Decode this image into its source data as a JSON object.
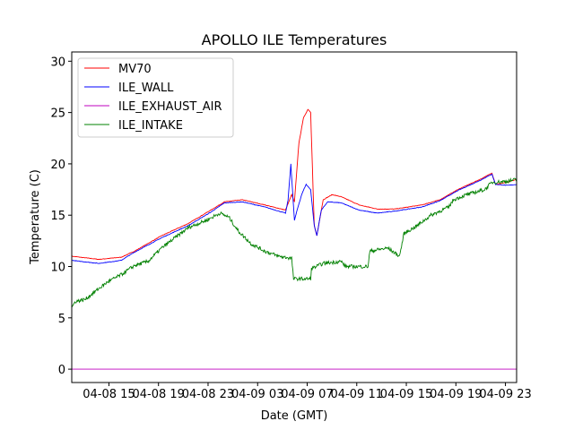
{
  "chart_data": {
    "type": "line",
    "title": "APOLLO ILE Temperatures",
    "xlabel": "Date (GMT)",
    "ylabel": "Temperature (C)",
    "x_units": "hours since 04-08 00:00 GMT",
    "xlim": [
      12.0,
      47.9
    ],
    "ylim": [
      -1.3,
      30.9
    ],
    "xticks": [
      15,
      19,
      23,
      27,
      31,
      35,
      39,
      43,
      47
    ],
    "xtick_labels": [
      "04-08 15",
      "04-08 19",
      "04-08 23",
      "04-09 03",
      "04-09 07",
      "04-09 11",
      "04-09 15",
      "04-09 19",
      "04-09 23"
    ],
    "yticks": [
      0,
      5,
      10,
      15,
      20,
      25,
      30
    ],
    "ytick_labels": [
      "0",
      "5",
      "10",
      "15",
      "20",
      "25",
      "30"
    ],
    "grid": false,
    "legend_position": "upper-left",
    "series": [
      {
        "name": "MV70",
        "color": "#ff0000",
        "x": [
          12.0,
          14.17,
          15.99,
          17.07,
          19.25,
          21.42,
          23.23,
          24.32,
          25.77,
          27.58,
          29.25,
          29.75,
          29.97,
          30.33,
          30.7,
          31.06,
          31.28,
          31.57,
          31.78,
          32.29,
          33.01,
          33.74,
          35.19,
          36.64,
          38.09,
          40.26,
          41.71,
          43.16,
          44.97,
          45.91,
          46.2,
          47.14,
          47.94
        ],
        "y": [
          11.0,
          10.7,
          10.9,
          11.5,
          13.0,
          14.2,
          15.5,
          16.3,
          16.5,
          16.0,
          15.5,
          17.0,
          16.3,
          22.0,
          24.5,
          25.3,
          25.0,
          14.0,
          13.0,
          16.5,
          17.0,
          16.8,
          16.0,
          15.6,
          15.6,
          16.0,
          16.5,
          17.5,
          18.5,
          19.1,
          18.0,
          18.2,
          18.5
        ]
      },
      {
        "name": "ILE_WALL",
        "color": "#0000ff",
        "x": [
          12.0,
          14.17,
          15.99,
          17.07,
          19.25,
          21.42,
          23.23,
          24.32,
          25.77,
          27.58,
          29.25,
          29.46,
          29.68,
          29.97,
          30.19,
          30.55,
          30.91,
          31.28,
          31.57,
          31.78,
          32.14,
          32.65,
          33.74,
          35.19,
          36.64,
          38.09,
          40.26,
          41.71,
          43.16,
          44.97,
          45.91,
          46.2,
          47.14,
          47.94
        ],
        "y": [
          10.6,
          10.3,
          10.6,
          11.4,
          12.8,
          14.0,
          15.3,
          16.2,
          16.3,
          15.8,
          15.2,
          16.5,
          20.0,
          14.5,
          15.5,
          17.0,
          18.0,
          17.5,
          14.0,
          13.0,
          15.5,
          16.3,
          16.2,
          15.5,
          15.2,
          15.4,
          15.8,
          16.4,
          17.4,
          18.4,
          19.0,
          18.0,
          17.9,
          18.0
        ]
      },
      {
        "name": "ILE_EXHAUST_AIR",
        "color": "#bf00bf",
        "x": [
          12.0,
          47.94
        ],
        "y": [
          0.0,
          0.0
        ]
      },
      {
        "name": "ILE_INTAKE",
        "color": "#008000",
        "x": [
          12.0,
          12.29,
          13.09,
          13.81,
          14.9,
          15.99,
          17.07,
          18.16,
          19.25,
          20.33,
          21.42,
          22.87,
          23.96,
          24.68,
          25.41,
          26.49,
          27.58,
          28.67,
          29.75,
          29.9,
          31.28,
          31.35,
          32.29,
          33.74,
          34.1,
          35.91,
          36.06,
          37.51,
          38.45,
          38.81,
          39.9,
          40.99,
          42.43,
          42.8,
          43.88,
          45.33,
          45.91,
          47.14,
          47.94
        ],
        "y": [
          6.0,
          6.6,
          6.8,
          7.5,
          8.5,
          9.2,
          10.1,
          10.5,
          11.8,
          12.8,
          13.8,
          14.5,
          15.2,
          14.8,
          13.5,
          12.2,
          11.5,
          11.0,
          10.8,
          8.8,
          8.8,
          9.8,
          10.3,
          10.5,
          10.0,
          10.0,
          11.5,
          11.8,
          11.0,
          13.2,
          14.0,
          15.0,
          15.8,
          16.5,
          17.0,
          17.5,
          18.2,
          18.3,
          18.5
        ]
      }
    ]
  }
}
